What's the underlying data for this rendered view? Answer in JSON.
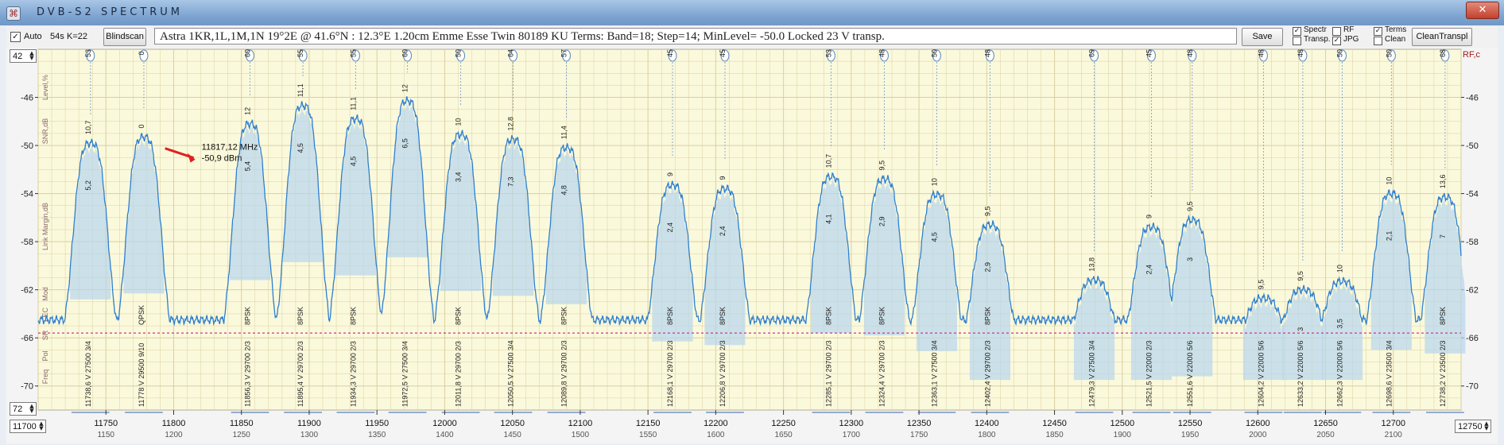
{
  "window": {
    "title": "DVB-S2   SPECTRUM",
    "app_icon": "satellite-icon",
    "close_glyph": "✕"
  },
  "toolbar": {
    "auto_checked": true,
    "auto_label": "Auto",
    "scan_time": "54s",
    "k_value": "K=22",
    "blindscan_label": "Blindscan",
    "info": "Astra 1KR,1L,1M,1N    19°2E  @  41.6°N : 12.3°E     1.20cm  Emme Esse Twin 80189 KU      Terms:  Band=18; Step=14; MinLevel= -50.0      Locked  23 V transp.",
    "save_label": "Save",
    "options": [
      {
        "label": "Spectr",
        "checked": true
      },
      {
        "label": "RF",
        "checked": false
      },
      {
        "label": "Terms",
        "checked": true
      },
      {
        "label": "Transp.",
        "checked": false
      },
      {
        "label": "JPG",
        "checked": true
      },
      {
        "label": "Clean",
        "checked": false
      }
    ],
    "clean_transp_label": "CleanTranspl"
  },
  "controls": {
    "top_spin": "42",
    "bottom_spin": "72",
    "freq_start": "11700",
    "freq_end": "12750"
  },
  "chart_data": {
    "type": "line",
    "left_axis_title": "Level,%",
    "left_axis_sub1": "SNR,dB",
    "left_axis_sub2": "Link Margin,dB",
    "right_axis_title": "RF,c",
    "row_labels": [
      "Mod",
      "FEC",
      "SR",
      "Pol",
      "Freq"
    ],
    "ylim": [
      -72,
      -42
    ],
    "y_ticks": [
      -46,
      -50,
      -54,
      -58,
      -62,
      -66,
      -70
    ],
    "xlim": [
      11700,
      12750
    ],
    "x_ticks": [
      11750,
      11800,
      11850,
      11900,
      11950,
      12000,
      12050,
      12100,
      12150,
      12200,
      12250,
      12300,
      12350,
      12400,
      12450,
      12500,
      12550,
      12600,
      12650,
      12700
    ],
    "if_ticks": [
      "1150",
      "1200",
      "1250",
      "1300",
      "1350",
      "1400",
      "1450",
      "1500",
      "1550",
      "1600",
      "1650",
      "1700",
      "1750",
      "1800",
      "1850",
      "1900",
      "1950",
      "2000",
      "2050",
      "2100"
    ],
    "min_level": -65.6,
    "marker": {
      "freq": 11817.12,
      "level": -50.9,
      "line1": "11817,12 MHz",
      "line2": "-50,9 dBm"
    },
    "colors": {
      "trace": "#2d7fd0",
      "fill": "#b7d6ec",
      "grid": "#d9d0a0",
      "background": "#fbf9dc",
      "min_line": "#cc3399",
      "marker_arrow": "#e02020"
    },
    "transponders": [
      {
        "freq": 11738.6,
        "pol": "V",
        "sr": "27500",
        "fec": "3/4",
        "mod": "",
        "level": 53,
        "snr": "10,7",
        "margin": "5,2",
        "peak": -49.8
      },
      {
        "freq": 11778,
        "pol": "V",
        "sr": "29500",
        "fec": "9/10",
        "mod": "QPSK",
        "level": 0,
        "snr": "0",
        "margin": "",
        "peak": -49.3
      },
      {
        "freq": 11856.3,
        "pol": "V",
        "sr": "29700",
        "fec": "2/3",
        "mod": "8PSK",
        "level": 60,
        "snr": "12",
        "margin": "5,4",
        "peak": -48.2
      },
      {
        "freq": 11895.4,
        "pol": "V",
        "sr": "29700",
        "fec": "2/3",
        "mod": "8PSK",
        "level": 55,
        "snr": "11,1",
        "margin": "4,5",
        "peak": -46.7
      },
      {
        "freq": 11934.3,
        "pol": "V",
        "sr": "29700",
        "fec": "2/3",
        "mod": "8PSK",
        "level": 55,
        "snr": "11,1",
        "margin": "4,5",
        "peak": -47.8
      },
      {
        "freq": 11972.5,
        "pol": "V",
        "sr": "27500",
        "fec": "3/4",
        "mod": "",
        "level": 60,
        "snr": "12",
        "margin": "6,5",
        "peak": -46.3
      },
      {
        "freq": 12011.8,
        "pol": "V",
        "sr": "29700",
        "fec": "2/3",
        "mod": "8PSK",
        "level": 50,
        "snr": "10",
        "margin": "3,4",
        "peak": -49.1
      },
      {
        "freq": 12050.5,
        "pol": "V",
        "sr": "27500",
        "fec": "3/4",
        "mod": "",
        "level": 64,
        "snr": "12,8",
        "margin": "7,3",
        "peak": -49.5
      },
      {
        "freq": 12089.8,
        "pol": "V",
        "sr": "29700",
        "fec": "2/3",
        "mod": "8PSK",
        "level": 57,
        "snr": "11,4",
        "margin": "4,8",
        "peak": -50.2
      },
      {
        "freq": 12168.1,
        "pol": "V",
        "sr": "29700",
        "fec": "2/3",
        "mod": "8PSK",
        "level": 45,
        "snr": "9",
        "margin": "2,4",
        "peak": -53.3
      },
      {
        "freq": 12206.8,
        "pol": "V",
        "sr": "29700",
        "fec": "2/3",
        "mod": "8PSK",
        "level": 45,
        "snr": "9",
        "margin": "2,4",
        "peak": -53.6
      },
      {
        "freq": 12285.1,
        "pol": "V",
        "sr": "29700",
        "fec": "2/3",
        "mod": "8PSK",
        "level": 53,
        "snr": "10,7",
        "margin": "4,1",
        "peak": -52.6
      },
      {
        "freq": 12324.4,
        "pol": "V",
        "sr": "29700",
        "fec": "2/3",
        "mod": "8PSK",
        "level": 48,
        "snr": "9,5",
        "margin": "2,9",
        "peak": -52.8
      },
      {
        "freq": 12363.1,
        "pol": "V",
        "sr": "27500",
        "fec": "3/4",
        "mod": "",
        "level": 50,
        "snr": "10",
        "margin": "4,5",
        "peak": -54.1
      },
      {
        "freq": 12402.4,
        "pol": "V",
        "sr": "29700",
        "fec": "2/3",
        "mod": "8PSK",
        "level": 48,
        "snr": "9,5",
        "margin": "2,9",
        "peak": -56.6
      },
      {
        "freq": 12479.3,
        "pol": "V",
        "sr": "27500",
        "fec": "3/4",
        "mod": "",
        "level": 69,
        "snr": "13,8",
        "margin": "",
        "peak": -61.2
      },
      {
        "freq": 12521.5,
        "pol": "V",
        "sr": "22000",
        "fec": "2/3",
        "mod": "",
        "level": 45,
        "snr": "9",
        "margin": "2,4",
        "peak": -56.8
      },
      {
        "freq": 12551.6,
        "pol": "V",
        "sr": "22000",
        "fec": "5/6",
        "mod": "",
        "level": 48,
        "snr": "9,5",
        "margin": "3",
        "peak": -56.2
      },
      {
        "freq": 12604.2,
        "pol": "V",
        "sr": "22000",
        "fec": "5/6",
        "mod": "",
        "level": 48,
        "snr": "9,5",
        "margin": "",
        "peak": -62.7
      },
      {
        "freq": 12633.2,
        "pol": "V",
        "sr": "22000",
        "fec": "5/6",
        "mod": "",
        "level": 48,
        "snr": "9,5",
        "margin": "3",
        "peak": -62
      },
      {
        "freq": 12662.3,
        "pol": "V",
        "sr": "22000",
        "fec": "5/6",
        "mod": "",
        "level": 50,
        "snr": "10",
        "margin": "3,5",
        "peak": -61.3
      },
      {
        "freq": 12698.6,
        "pol": "V",
        "sr": "23500",
        "fec": "3/4",
        "mod": "",
        "level": 50,
        "snr": "10",
        "margin": "2,1",
        "peak": -54
      },
      {
        "freq": 12738.2,
        "pol": "V",
        "sr": "23500",
        "fec": "2/3",
        "mod": "8PSK",
        "level": 68,
        "snr": "13,6",
        "margin": "7",
        "peak": -54.3
      }
    ]
  }
}
